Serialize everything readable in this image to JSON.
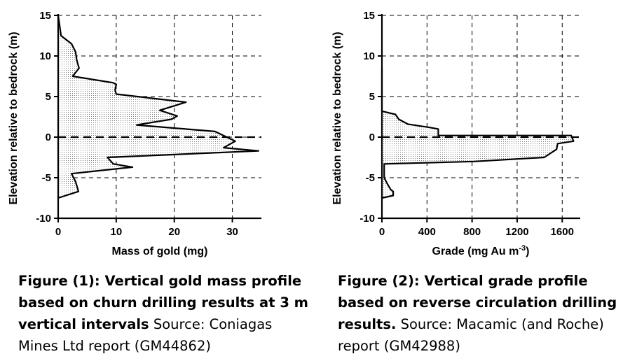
{
  "chart_data": [
    {
      "type": "area",
      "orientation": "vertical-profile",
      "xlabel": "Mass of gold (mg)",
      "ylabel": "Elevation relative to bedrock (m)",
      "xlim": [
        0,
        35
      ],
      "ylim": [
        -10,
        15
      ],
      "xticks": [
        0,
        10,
        20,
        30
      ],
      "yticks": [
        -10,
        -5,
        0,
        5,
        10,
        15
      ],
      "grid": true,
      "reference_line_y": 0,
      "points": [
        {
          "x": 0,
          "y": 15
        },
        {
          "x": 0.3,
          "y": 13.5
        },
        {
          "x": 0.5,
          "y": 12.5
        },
        {
          "x": 2.3,
          "y": 11.5
        },
        {
          "x": 3.0,
          "y": 10.5
        },
        {
          "x": 3.2,
          "y": 9.5
        },
        {
          "x": 3.6,
          "y": 8.5
        },
        {
          "x": 2.5,
          "y": 7.5
        },
        {
          "x": 9.5,
          "y": 6.7
        },
        {
          "x": 10.0,
          "y": 6.5
        },
        {
          "x": 9.8,
          "y": 5.8
        },
        {
          "x": 10.0,
          "y": 5.3
        },
        {
          "x": 22,
          "y": 4.3
        },
        {
          "x": 17.5,
          "y": 3.3
        },
        {
          "x": 20.5,
          "y": 2.6
        },
        {
          "x": 19.5,
          "y": 2.2
        },
        {
          "x": 13.5,
          "y": 1.5
        },
        {
          "x": 27,
          "y": 0.7
        },
        {
          "x": 30.5,
          "y": -0.5
        },
        {
          "x": 28.5,
          "y": -1.3
        },
        {
          "x": 34.5,
          "y": -1.7
        },
        {
          "x": 8.5,
          "y": -2.5
        },
        {
          "x": 9.5,
          "y": -3.3
        },
        {
          "x": 12.8,
          "y": -3.7
        },
        {
          "x": 2.3,
          "y": -4.5
        },
        {
          "x": 3.0,
          "y": -5.5
        },
        {
          "x": 3.5,
          "y": -6.7
        },
        {
          "x": 0,
          "y": -7.5
        }
      ]
    },
    {
      "type": "area",
      "orientation": "vertical-profile",
      "xlabel": "Grade (mg Au m",
      "xlabel_superscript": "-3",
      "xlabel_close": ")",
      "ylabel": "Elevation relative to bedrock (m)",
      "xlim": [
        0,
        1760
      ],
      "ylim": [
        -10,
        15
      ],
      "xticks": [
        0,
        400,
        800,
        1200,
        1600
      ],
      "yticks": [
        -10,
        -5,
        0,
        5,
        10,
        15
      ],
      "grid": true,
      "reference_line_y": 0,
      "points": [
        {
          "x": 0,
          "y": 8.5
        },
        {
          "x": 0,
          "y": 3.2
        },
        {
          "x": 120,
          "y": 2.8
        },
        {
          "x": 150,
          "y": 2.2
        },
        {
          "x": 230,
          "y": 1.6
        },
        {
          "x": 420,
          "y": 1.2
        },
        {
          "x": 500,
          "y": 1.0
        },
        {
          "x": 500,
          "y": 0.2
        },
        {
          "x": 1680,
          "y": 0.2
        },
        {
          "x": 1700,
          "y": -0.5
        },
        {
          "x": 1560,
          "y": -0.8
        },
        {
          "x": 1550,
          "y": -1.5
        },
        {
          "x": 1440,
          "y": -2.5
        },
        {
          "x": 820,
          "y": -3.0
        },
        {
          "x": 20,
          "y": -3.3
        },
        {
          "x": 20,
          "y": -5.0
        },
        {
          "x": 50,
          "y": -5.8
        },
        {
          "x": 80,
          "y": -6.5
        },
        {
          "x": 100,
          "y": -6.7
        },
        {
          "x": 100,
          "y": -7.2
        },
        {
          "x": 0,
          "y": -7.5
        }
      ]
    }
  ],
  "captions": [
    {
      "bold": "Figure (1): Vertical gold mass profile based on churn drilling results at 3 m vertical intervals",
      "normal": "Source: Coniagas Mines Ltd report (GM44862)"
    },
    {
      "bold": "Figure (2): Vertical grade profile based on reverse circulation drilling results.",
      "normal": "Source: Macamic (and Roche) report (GM42988)"
    }
  ]
}
